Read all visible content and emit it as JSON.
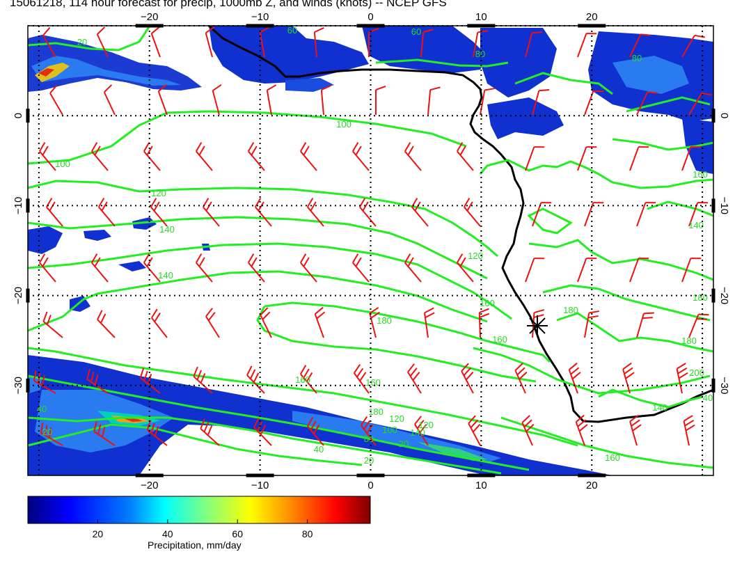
{
  "title": "15061218, 114 hour forecast for precip, 1000mb Z, and winds (knots) -- NCEP GFS",
  "map": {
    "lon_range": [
      -31,
      31
    ],
    "lat_range": [
      -40,
      10
    ],
    "lon_ticks": [
      -20,
      -10,
      0,
      10,
      20
    ],
    "lat_ticks": [
      0,
      -10,
      -20,
      -30
    ],
    "lon_tick_labels": [
      "−20",
      "−10",
      "0",
      "10",
      "20"
    ],
    "lat_tick_labels": [
      "0",
      "−10",
      "−20",
      "−30"
    ],
    "grid_lines": [
      -30,
      -20,
      -10,
      0,
      10,
      20,
      30
    ],
    "contour_labels": [
      "60",
      "20",
      "60",
      "80",
      "80",
      "100",
      "100",
      "120",
      "140",
      "120",
      "140",
      "160",
      "140",
      "160",
      "180",
      "160",
      "180",
      "180",
      "180",
      "160",
      "160",
      "200",
      "180",
      "120",
      "140",
      "160",
      "100",
      "80",
      "40",
      "20",
      "20",
      "40",
      "120",
      "140",
      "40",
      "20"
    ],
    "colors": {
      "contour": "#22ee22",
      "wind": "#ee1111",
      "coast": "#000000"
    },
    "station_marker": "star-icon"
  },
  "colorbar": {
    "ticks": [
      "20",
      "40",
      "60",
      "80"
    ],
    "label": "Precipitation, mm/day",
    "range": [
      0,
      98
    ],
    "colors": [
      "#00007f",
      "#0000ff",
      "#0080ff",
      "#00ffff",
      "#80ff80",
      "#ffff00",
      "#ff8000",
      "#ff0000",
      "#7f0000"
    ]
  }
}
